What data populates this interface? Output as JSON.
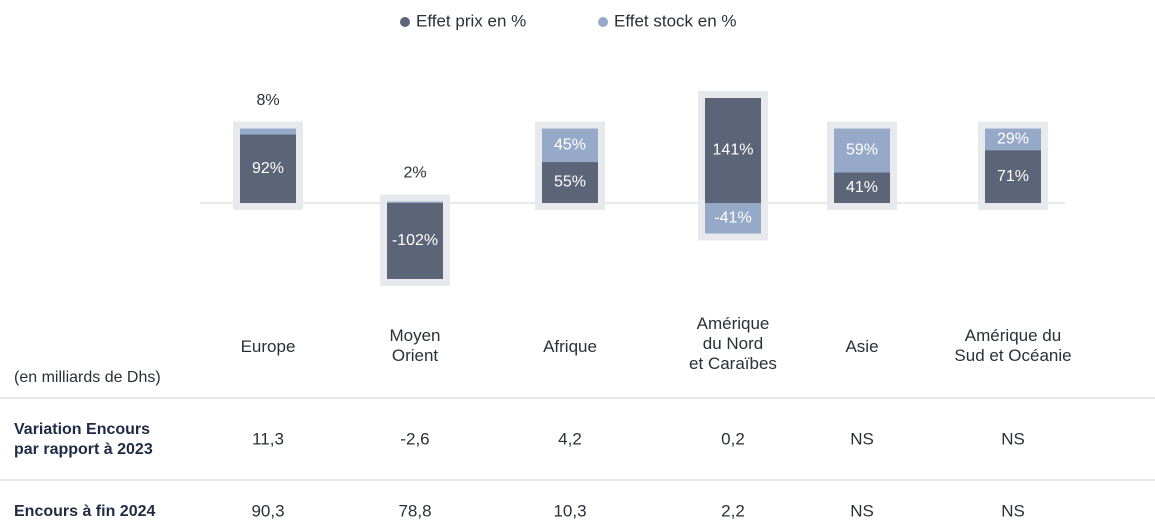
{
  "chart_data": {
    "type": "bar",
    "categories": [
      "Europe",
      "Moyen\nOrient",
      "Afrique",
      "Amérique\ndu Nord\net Caraïbes",
      "Asie",
      "Amérique du\nSud et Océanie"
    ],
    "series": [
      {
        "name": "Effet prix en %",
        "color": "#5b6577",
        "values": [
          92,
          -102,
          55,
          141,
          41,
          71
        ],
        "value_labels": [
          "92%",
          "-102%",
          "55%",
          "141%",
          "41%",
          "71%"
        ]
      },
      {
        "name": "Effet stock en %",
        "color": "#97a9c9",
        "values": [
          8,
          2,
          45,
          -41,
          59,
          29
        ],
        "value_labels": [
          "8%",
          "2%",
          "45%",
          "-41%",
          "59%",
          "29%"
        ]
      }
    ],
    "stacked": true
  },
  "table": {
    "unit": "(en milliards de Dhs)",
    "rows": [
      {
        "label": "Variation Encours\npar rapport à 2023",
        "values": [
          "11,3",
          "-2,6",
          "4,2",
          "0,2",
          "NS",
          "NS"
        ]
      },
      {
        "label": "Encours à fin 2024",
        "values": [
          "90,3",
          "78,8",
          "10,3",
          "2,2",
          "NS",
          "NS"
        ]
      }
    ]
  }
}
